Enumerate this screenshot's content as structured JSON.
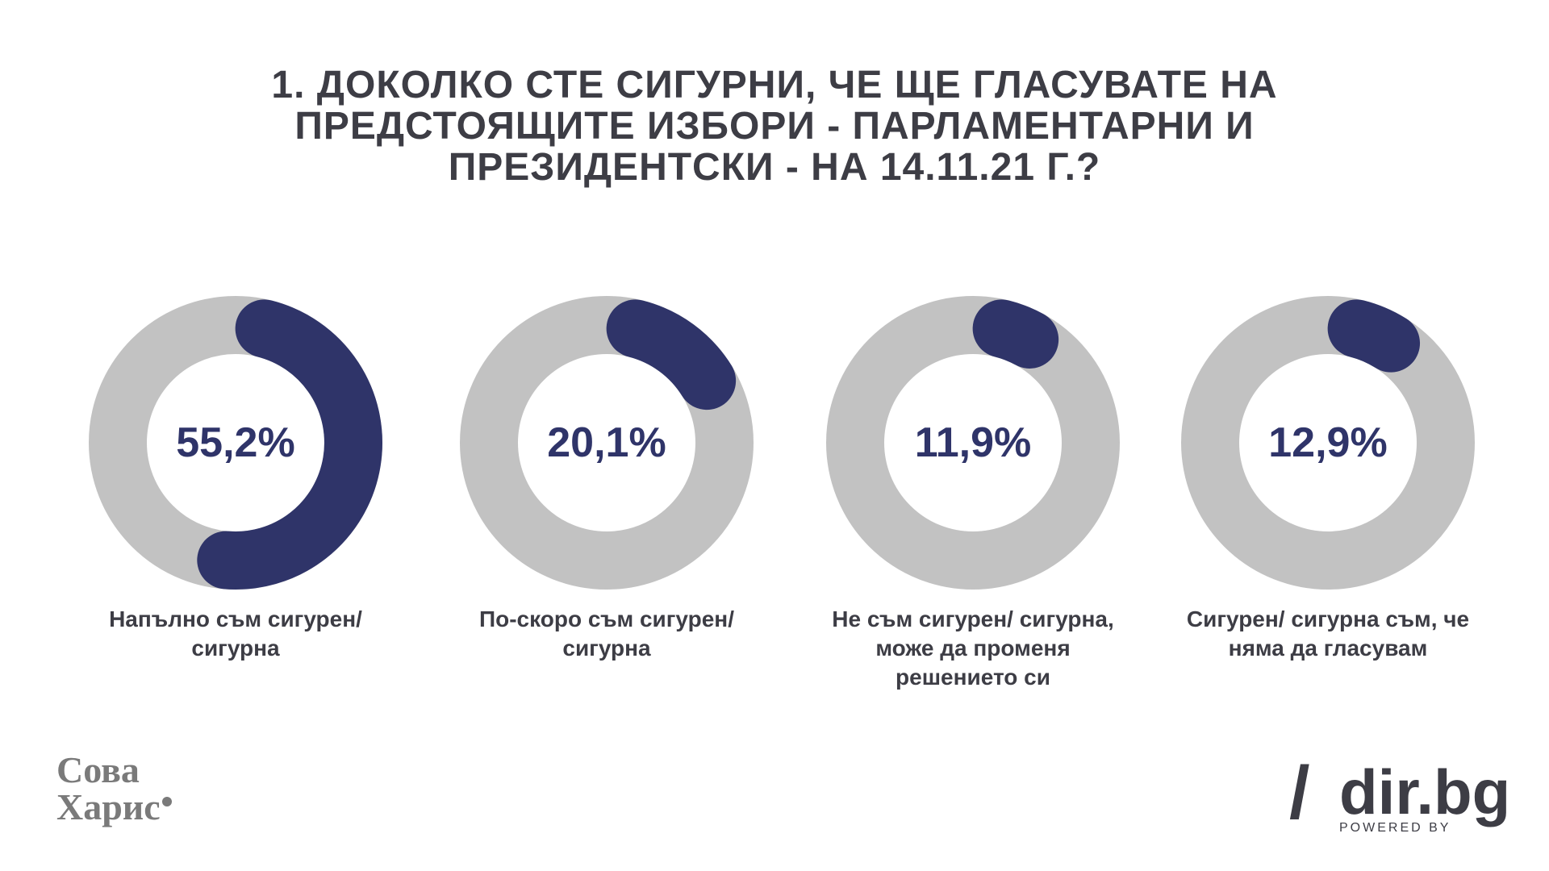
{
  "title": {
    "line1": "1.  ДОКОЛКО СТЕ СИГУРНИ, ЧЕ ЩЕ ГЛАСУВАТЕ НА",
    "line2": "ПРЕДСТОЯЩИТЕ ИЗБОРИ - ПАРЛАМЕНТАРНИ И",
    "line3": "ПРЕЗИДЕНТСКИ - НА 14.11.21 Г.?"
  },
  "chart_data": {
    "type": "pie",
    "categories": [
      "Напълно съм сигурен/ сигурна",
      "По-скоро съм сигурен/ сигурна",
      "Не съм сигурен/ сигурна, може да променя решението си",
      "Сигурен/ сигурна съм, че няма да гласувам"
    ],
    "values": [
      55.2,
      20.1,
      11.9,
      12.9
    ],
    "value_labels": [
      "55,2%",
      "20,1%",
      "11,9%",
      "12,9%"
    ],
    "unit": "%",
    "colors": {
      "fill": "#2f3469",
      "track": "#c2c2c2"
    }
  },
  "logos": {
    "left_line1": "Сова",
    "left_line2": "Харис",
    "right_slash": "/",
    "right_name": "dir.bg",
    "right_powered": "POWERED BY"
  }
}
